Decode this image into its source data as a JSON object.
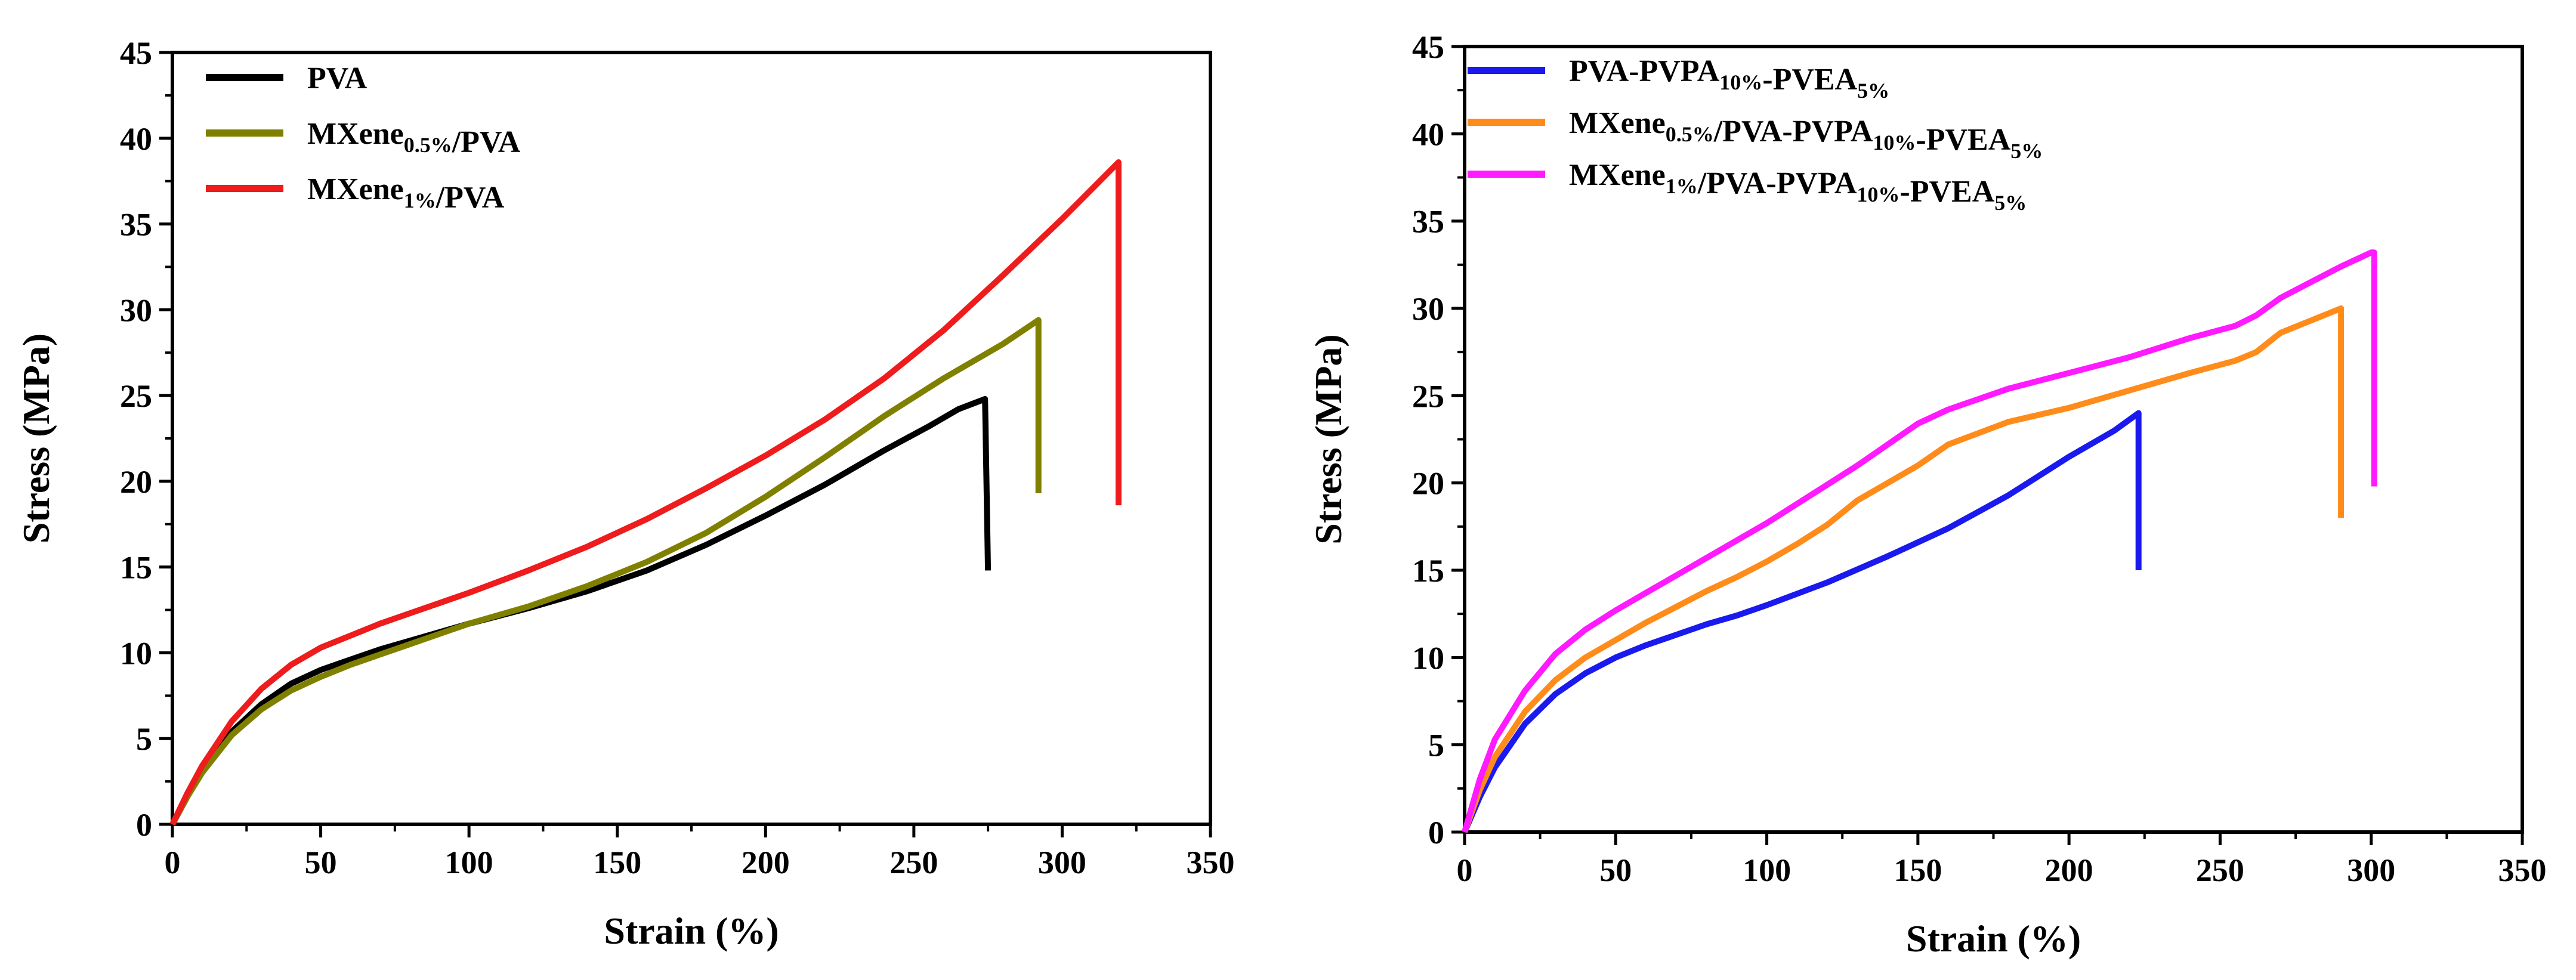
{
  "chart_data": [
    {
      "type": "line",
      "xlabel": "Strain (%)",
      "ylabel": "Stress (MPa)",
      "xlim": [
        0,
        350
      ],
      "ylim": [
        0,
        45
      ],
      "x_ticks": [
        0,
        50,
        100,
        150,
        200,
        250,
        300,
        350
      ],
      "y_ticks": [
        0,
        5,
        10,
        15,
        20,
        25,
        30,
        35,
        40,
        45
      ],
      "legend_position": "top-left",
      "series": [
        {
          "name": "PVA",
          "legend": [
            {
              "t": "PVA",
              "sub": false
            }
          ],
          "color": "#000000",
          "points": [
            [
              0,
              0
            ],
            [
              5,
              1.6
            ],
            [
              10,
              3.1
            ],
            [
              20,
              5.4
            ],
            [
              30,
              7.0
            ],
            [
              40,
              8.2
            ],
            [
              50,
              9.0
            ],
            [
              60,
              9.6
            ],
            [
              70,
              10.2
            ],
            [
              80,
              10.7
            ],
            [
              90,
              11.2
            ],
            [
              100,
              11.7
            ],
            [
              120,
              12.6
            ],
            [
              140,
              13.6
            ],
            [
              160,
              14.8
            ],
            [
              180,
              16.3
            ],
            [
              200,
              18.0
            ],
            [
              220,
              19.8
            ],
            [
              240,
              21.8
            ],
            [
              255,
              23.2
            ],
            [
              265,
              24.2
            ],
            [
              274,
              24.8
            ],
            [
              275,
              14.8
            ]
          ]
        },
        {
          "name": "MXene0.5%/PVA",
          "legend": [
            {
              "t": "MXene",
              "sub": false
            },
            {
              "t": "0.5%",
              "sub": true
            },
            {
              "t": "/PVA",
              "sub": false
            }
          ],
          "color": "#808000",
          "points": [
            [
              0,
              0
            ],
            [
              5,
              1.6
            ],
            [
              10,
              3.0
            ],
            [
              20,
              5.2
            ],
            [
              30,
              6.7
            ],
            [
              40,
              7.8
            ],
            [
              50,
              8.6
            ],
            [
              60,
              9.3
            ],
            [
              70,
              9.9
            ],
            [
              80,
              10.5
            ],
            [
              90,
              11.1
            ],
            [
              100,
              11.7
            ],
            [
              120,
              12.7
            ],
            [
              140,
              13.9
            ],
            [
              160,
              15.3
            ],
            [
              180,
              17.0
            ],
            [
              200,
              19.1
            ],
            [
              220,
              21.4
            ],
            [
              240,
              23.8
            ],
            [
              260,
              26.0
            ],
            [
              280,
              28.0
            ],
            [
              292,
              29.4
            ],
            [
              292,
              19.3
            ]
          ]
        },
        {
          "name": "MXene1%/PVA",
          "legend": [
            {
              "t": "MXene",
              "sub": false
            },
            {
              "t": "1%",
              "sub": true
            },
            {
              "t": "/PVA",
              "sub": false
            }
          ],
          "color": "#ee1c1c",
          "points": [
            [
              0,
              0
            ],
            [
              5,
              1.8
            ],
            [
              10,
              3.4
            ],
            [
              20,
              6.0
            ],
            [
              30,
              7.9
            ],
            [
              40,
              9.3
            ],
            [
              50,
              10.3
            ],
            [
              60,
              11.0
            ],
            [
              70,
              11.7
            ],
            [
              80,
              12.3
            ],
            [
              90,
              12.9
            ],
            [
              100,
              13.5
            ],
            [
              120,
              14.8
            ],
            [
              140,
              16.2
            ],
            [
              160,
              17.8
            ],
            [
              180,
              19.6
            ],
            [
              200,
              21.5
            ],
            [
              220,
              23.6
            ],
            [
              240,
              26.0
            ],
            [
              260,
              28.8
            ],
            [
              280,
              32.0
            ],
            [
              300,
              35.3
            ],
            [
              319,
              38.6
            ],
            [
              319,
              18.6
            ]
          ]
        }
      ]
    },
    {
      "type": "line",
      "xlabel": "Strain (%)",
      "ylabel": "Stress (MPa)",
      "xlim": [
        0,
        350
      ],
      "ylim": [
        0,
        45
      ],
      "x_ticks": [
        0,
        50,
        100,
        150,
        200,
        250,
        300,
        350
      ],
      "y_ticks": [
        0,
        5,
        10,
        15,
        20,
        25,
        30,
        35,
        40,
        45
      ],
      "legend_position": "top-left",
      "series": [
        {
          "name": "PVA-PVPA10%-PVEA5%",
          "legend": [
            {
              "t": "PVA-PVPA",
              "sub": false
            },
            {
              "t": "10%",
              "sub": true
            },
            {
              "t": "-PVEA",
              "sub": false
            },
            {
              "t": "5%",
              "sub": true
            }
          ],
          "color": "#1a1aee",
          "points": [
            [
              0,
              0
            ],
            [
              5,
              2.0
            ],
            [
              10,
              3.7
            ],
            [
              20,
              6.2
            ],
            [
              30,
              7.9
            ],
            [
              40,
              9.1
            ],
            [
              50,
              10.0
            ],
            [
              60,
              10.7
            ],
            [
              70,
              11.3
            ],
            [
              80,
              11.9
            ],
            [
              90,
              12.4
            ],
            [
              100,
              13.0
            ],
            [
              120,
              14.3
            ],
            [
              140,
              15.8
            ],
            [
              160,
              17.4
            ],
            [
              180,
              19.3
            ],
            [
              200,
              21.5
            ],
            [
              215,
              23.0
            ],
            [
              223,
              24.0
            ],
            [
              223,
              15.0
            ]
          ]
        },
        {
          "name": "MXene0.5%/PVA-PVPA10%-PVEA5%",
          "legend": [
            {
              "t": "MXene",
              "sub": false
            },
            {
              "t": "0.5%",
              "sub": true
            },
            {
              "t": "/PVA-PVPA",
              "sub": false
            },
            {
              "t": "10%",
              "sub": true
            },
            {
              "t": "-PVEA",
              "sub": false
            },
            {
              "t": "5%",
              "sub": true
            }
          ],
          "color": "#ff8c1a",
          "points": [
            [
              0,
              0
            ],
            [
              5,
              2.4
            ],
            [
              10,
              4.3
            ],
            [
              20,
              6.9
            ],
            [
              30,
              8.7
            ],
            [
              40,
              10.0
            ],
            [
              50,
              11.0
            ],
            [
              60,
              12.0
            ],
            [
              70,
              12.9
            ],
            [
              80,
              13.8
            ],
            [
              90,
              14.6
            ],
            [
              100,
              15.5
            ],
            [
              110,
              16.5
            ],
            [
              120,
              17.6
            ],
            [
              130,
              19.0
            ],
            [
              140,
              20.0
            ],
            [
              150,
              21.0
            ],
            [
              160,
              22.2
            ],
            [
              180,
              23.5
            ],
            [
              200,
              24.3
            ],
            [
              220,
              25.3
            ],
            [
              240,
              26.3
            ],
            [
              255,
              27.0
            ],
            [
              262,
              27.5
            ],
            [
              270,
              28.6
            ],
            [
              280,
              29.3
            ],
            [
              290,
              30.0
            ],
            [
              290,
              18.0
            ]
          ]
        },
        {
          "name": "MXene1%/PVA-PVPA10%-PVEA5%",
          "legend": [
            {
              "t": "MXene",
              "sub": false
            },
            {
              "t": "1%",
              "sub": true
            },
            {
              "t": "/PVA-PVPA",
              "sub": false
            },
            {
              "t": "10%",
              "sub": true
            },
            {
              "t": "-PVEA",
              "sub": false
            },
            {
              "t": "5%",
              "sub": true
            }
          ],
          "color": "#ff1aff",
          "points": [
            [
              0,
              0
            ],
            [
              5,
              3.0
            ],
            [
              10,
              5.3
            ],
            [
              20,
              8.1
            ],
            [
              30,
              10.2
            ],
            [
              40,
              11.6
            ],
            [
              50,
              12.7
            ],
            [
              60,
              13.7
            ],
            [
              70,
              14.7
            ],
            [
              80,
              15.7
            ],
            [
              90,
              16.7
            ],
            [
              100,
              17.7
            ],
            [
              110,
              18.8
            ],
            [
              120,
              19.9
            ],
            [
              130,
              21.0
            ],
            [
              140,
              22.2
            ],
            [
              150,
              23.4
            ],
            [
              160,
              24.2
            ],
            [
              180,
              25.4
            ],
            [
              200,
              26.3
            ],
            [
              220,
              27.2
            ],
            [
              240,
              28.3
            ],
            [
              255,
              29.0
            ],
            [
              262,
              29.6
            ],
            [
              270,
              30.6
            ],
            [
              280,
              31.5
            ],
            [
              290,
              32.4
            ],
            [
              300,
              33.2
            ],
            [
              301,
              33.2
            ],
            [
              301,
              19.8
            ]
          ]
        }
      ]
    }
  ]
}
